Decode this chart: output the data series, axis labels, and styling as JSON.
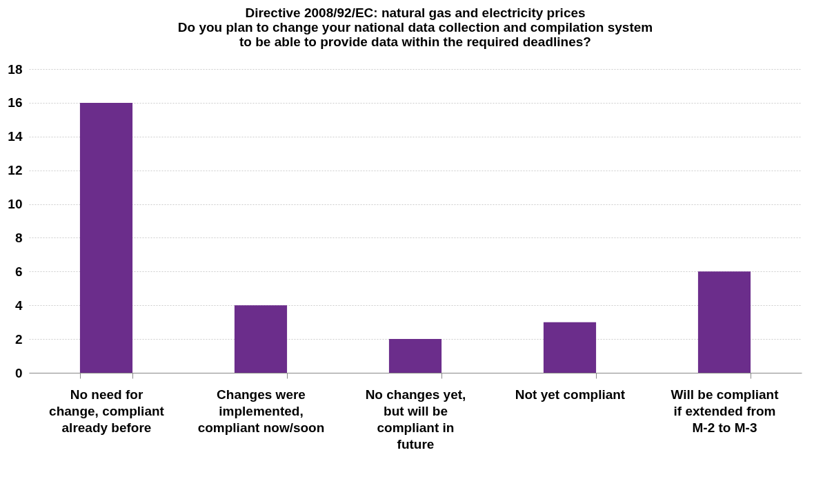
{
  "chart_data": {
    "type": "bar",
    "title": "Directive 2008/92/EC: natural gas and electricity prices\nDo you plan to change your national data collection and compilation system\nto be able to provide data within the required deadlines?",
    "categories": [
      "No need for change, compliant already before",
      "Changes were implemented, compliant now/soon",
      "No changes yet, but will be compliant in future",
      "Not yet compliant",
      "Will be compliant if extended from M-2 to M-3"
    ],
    "values": [
      16,
      4,
      2,
      3,
      6
    ],
    "color": "#6b2d8b",
    "ylim": [
      0,
      18
    ],
    "yticks": [
      0,
      2,
      4,
      6,
      8,
      10,
      12,
      14,
      16,
      18
    ],
    "grid": "y"
  }
}
